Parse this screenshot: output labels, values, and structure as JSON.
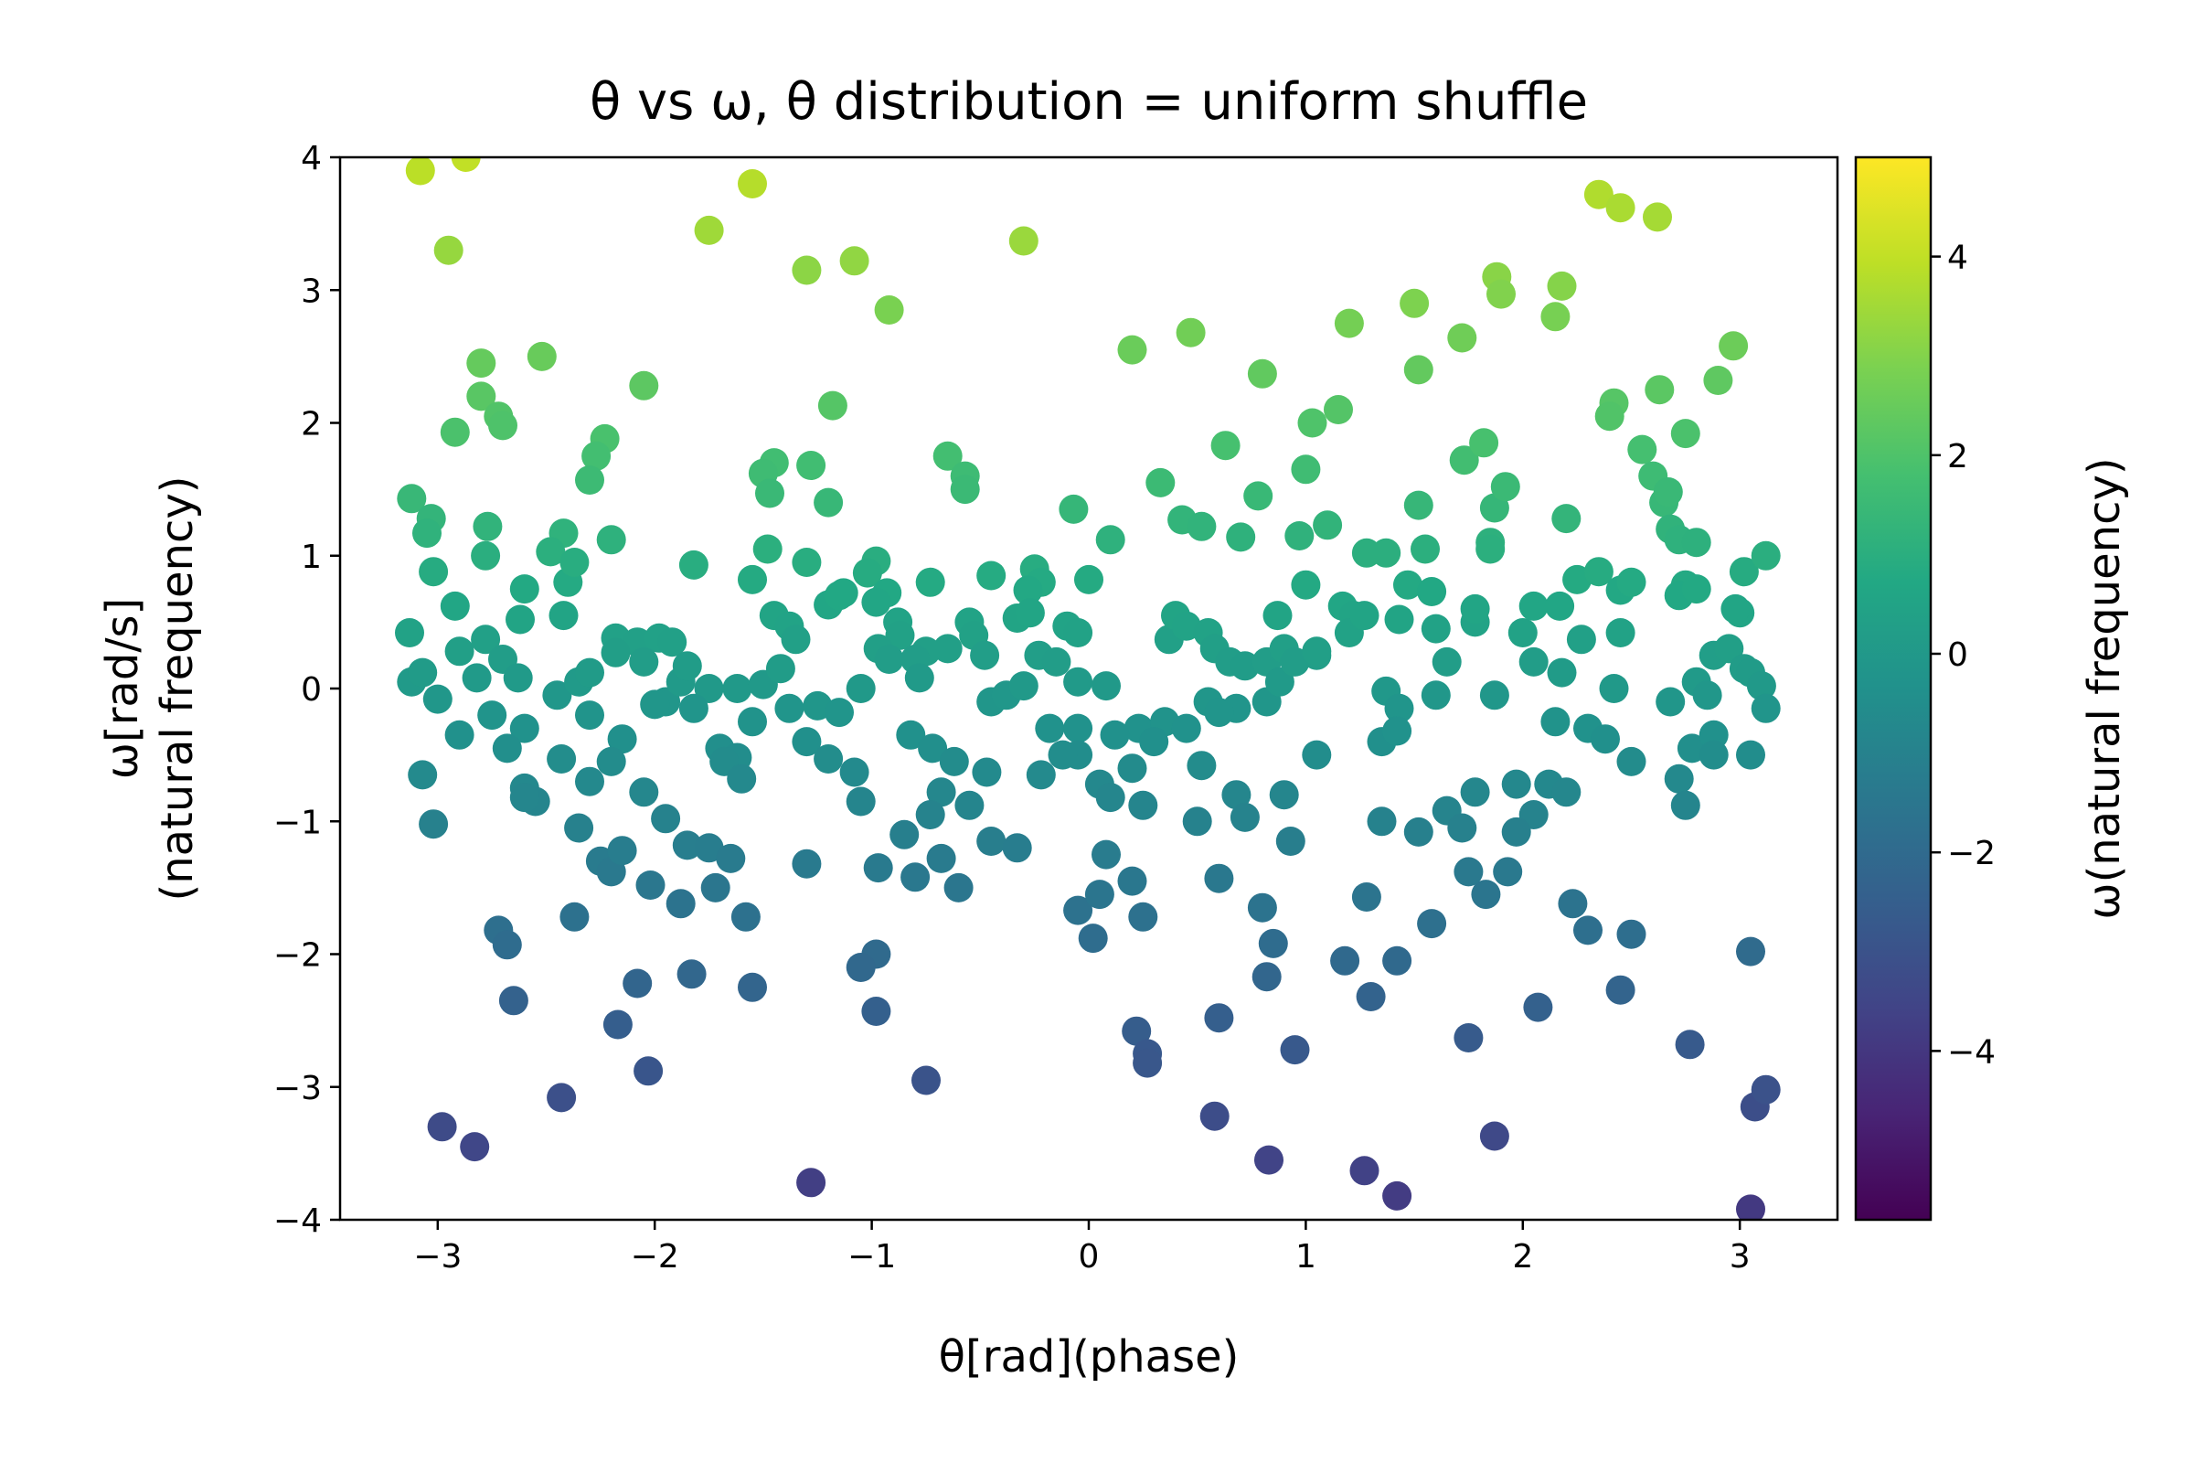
{
  "chart_data": {
    "type": "scatter",
    "title": "θ vs ω, θ distribution = uniform shuffle",
    "xlabel": "θ[rad](phase)",
    "ylabel_line1": "ω[rad/s]",
    "ylabel_line2": "(natural frequency)",
    "colorbar_label": "ω(natural frequency)",
    "colormap": "viridis",
    "xlim": [
      -3.45,
      3.45
    ],
    "ylim": [
      -4,
      4
    ],
    "clim": [
      -5.7,
      5.0
    ],
    "xticks": [
      -3,
      -2,
      -1,
      0,
      1,
      2,
      3
    ],
    "xtick_labels": [
      "−3",
      "−2",
      "−1",
      "0",
      "1",
      "2",
      "3"
    ],
    "yticks": [
      -4,
      -3,
      -2,
      -1,
      0,
      1,
      2,
      3,
      4
    ],
    "ytick_labels": [
      "−4",
      "−3",
      "−2",
      "−1",
      "0",
      "1",
      "2",
      "3",
      "4"
    ],
    "cbar_ticks": [
      -4,
      -2,
      0,
      2,
      4
    ],
    "cbar_tick_labels": [
      "−4",
      "−2",
      "0",
      "2",
      "4"
    ],
    "grid": false,
    "points": [
      [
        -3.08,
        3.9
      ],
      [
        -2.87,
        4.0
      ],
      [
        -2.95,
        3.3
      ],
      [
        -1.75,
        3.45
      ],
      [
        -1.55,
        3.8
      ],
      [
        -1.3,
        3.15
      ],
      [
        -1.08,
        3.22
      ],
      [
        -0.92,
        2.85
      ],
      [
        -0.3,
        3.37
      ],
      [
        2.35,
        3.72
      ],
      [
        2.45,
        3.62
      ],
      [
        2.62,
        3.55
      ],
      [
        1.88,
        3.1
      ],
      [
        1.9,
        2.97
      ],
      [
        2.18,
        3.03
      ],
      [
        2.15,
        2.8
      ],
      [
        1.5,
        2.9
      ],
      [
        1.2,
        2.75
      ],
      [
        0.47,
        2.68
      ],
      [
        0.2,
        2.55
      ],
      [
        0.8,
        2.37
      ],
      [
        1.72,
        2.64
      ],
      [
        1.52,
        2.4
      ],
      [
        2.97,
        2.58
      ],
      [
        2.9,
        2.32
      ],
      [
        2.42,
        2.15
      ],
      [
        2.4,
        2.05
      ],
      [
        2.63,
        2.25
      ],
      [
        2.75,
        1.92
      ],
      [
        1.03,
        2.0
      ],
      [
        1.15,
        2.1
      ],
      [
        0.63,
        1.83
      ],
      [
        -2.8,
        2.45
      ],
      [
        -2.8,
        2.2
      ],
      [
        -2.52,
        2.5
      ],
      [
        -2.05,
        2.28
      ],
      [
        -2.72,
        2.05
      ],
      [
        -2.7,
        1.98
      ],
      [
        -2.92,
        1.93
      ],
      [
        -1.18,
        2.13
      ],
      [
        -2.23,
        1.88
      ],
      [
        -2.27,
        1.75
      ],
      [
        -2.3,
        1.57
      ],
      [
        -1.45,
        1.7
      ],
      [
        -1.5,
        1.62
      ],
      [
        -1.28,
        1.68
      ],
      [
        -0.65,
        1.75
      ],
      [
        -0.57,
        1.6
      ],
      [
        -0.57,
        1.5
      ],
      [
        -1.47,
        1.47
      ],
      [
        -1.2,
        1.4
      ],
      [
        -3.12,
        1.43
      ],
      [
        -3.03,
        1.28
      ],
      [
        -3.05,
        1.17
      ],
      [
        -2.77,
        1.22
      ],
      [
        -2.42,
        1.17
      ],
      [
        -2.48,
        1.03
      ],
      [
        -2.78,
        1.0
      ],
      [
        -2.2,
        1.12
      ],
      [
        -1.48,
        1.05
      ],
      [
        -3.02,
        0.88
      ],
      [
        -2.6,
        0.75
      ],
      [
        -2.4,
        0.8
      ],
      [
        -2.37,
        0.95
      ],
      [
        -1.82,
        0.93
      ],
      [
        -1.55,
        0.82
      ],
      [
        -1.3,
        0.95
      ],
      [
        -0.98,
        0.96
      ],
      [
        -1.02,
        0.87
      ],
      [
        -0.73,
        0.8
      ],
      [
        -0.45,
        0.85
      ],
      [
        -0.25,
        0.9
      ],
      [
        -0.22,
        0.8
      ],
      [
        -0.28,
        0.74
      ],
      [
        0.0,
        0.82
      ],
      [
        -0.07,
        1.35
      ],
      [
        0.1,
        1.12
      ],
      [
        0.33,
        1.55
      ],
      [
        0.43,
        1.27
      ],
      [
        0.52,
        1.22
      ],
      [
        0.7,
        1.14
      ],
      [
        0.78,
        1.45
      ],
      [
        1.0,
        1.65
      ],
      [
        0.97,
        1.15
      ],
      [
        1.1,
        1.23
      ],
      [
        1.28,
        1.02
      ],
      [
        1.37,
        1.02
      ],
      [
        1.52,
        1.38
      ],
      [
        1.55,
        1.05
      ],
      [
        1.47,
        0.78
      ],
      [
        1.58,
        0.73
      ],
      [
        1.73,
        1.72
      ],
      [
        1.82,
        1.85
      ],
      [
        1.87,
        1.36
      ],
      [
        1.92,
        1.52
      ],
      [
        1.85,
        1.1
      ],
      [
        1.85,
        1.05
      ],
      [
        2.25,
        0.82
      ],
      [
        2.35,
        0.88
      ],
      [
        2.2,
        1.28
      ],
      [
        2.45,
        0.74
      ],
      [
        2.55,
        1.8
      ],
      [
        2.6,
        1.6
      ],
      [
        2.65,
        1.4
      ],
      [
        2.67,
        1.48
      ],
      [
        2.68,
        1.2
      ],
      [
        2.72,
        1.12
      ],
      [
        2.8,
        1.1
      ],
      [
        2.75,
        0.78
      ],
      [
        2.72,
        0.7
      ],
      [
        2.8,
        0.75
      ],
      [
        3.02,
        0.88
      ],
      [
        3.12,
        1.0
      ],
      [
        3.0,
        0.57
      ],
      [
        1.0,
        0.78
      ],
      [
        0.87,
        0.55
      ],
      [
        1.17,
        0.62
      ],
      [
        1.22,
        0.55
      ],
      [
        -0.93,
        0.72
      ],
      [
        -0.98,
        0.65
      ],
      [
        -1.2,
        0.63
      ],
      [
        -1.15,
        0.7
      ],
      [
        -1.13,
        0.72
      ],
      [
        -3.13,
        0.42
      ],
      [
        -2.92,
        0.62
      ],
      [
        -2.62,
        0.52
      ],
      [
        -2.42,
        0.55
      ],
      [
        -2.18,
        0.38
      ],
      [
        -2.08,
        0.35
      ],
      [
        -1.98,
        0.38
      ],
      [
        -1.92,
        0.35
      ],
      [
        -1.45,
        0.55
      ],
      [
        -1.38,
        0.47
      ],
      [
        -1.35,
        0.37
      ],
      [
        -0.88,
        0.5
      ],
      [
        -0.87,
        0.4
      ],
      [
        -0.75,
        0.28
      ],
      [
        -0.55,
        0.5
      ],
      [
        -0.53,
        0.4
      ],
      [
        -0.33,
        0.53
      ],
      [
        -0.27,
        0.57
      ],
      [
        -0.1,
        0.47
      ],
      [
        -0.05,
        0.42
      ],
      [
        0.37,
        0.37
      ],
      [
        0.4,
        0.55
      ],
      [
        0.45,
        0.47
      ],
      [
        0.55,
        0.42
      ],
      [
        0.58,
        0.3
      ],
      [
        0.65,
        0.2
      ],
      [
        0.72,
        0.17
      ],
      [
        0.82,
        0.2
      ],
      [
        0.9,
        0.3
      ],
      [
        1.05,
        0.25
      ],
      [
        1.2,
        0.42
      ],
      [
        1.27,
        0.55
      ],
      [
        1.43,
        0.52
      ],
      [
        1.6,
        0.45
      ],
      [
        1.65,
        0.2
      ],
      [
        1.78,
        0.5
      ],
      [
        1.78,
        0.6
      ],
      [
        2.0,
        0.42
      ],
      [
        2.05,
        0.62
      ],
      [
        2.17,
        0.62
      ],
      [
        2.27,
        0.37
      ],
      [
        2.45,
        0.42
      ],
      [
        2.5,
        0.8
      ],
      [
        2.88,
        0.25
      ],
      [
        2.95,
        0.3
      ],
      [
        2.98,
        0.6
      ],
      [
        3.02,
        0.15
      ],
      [
        -3.12,
        0.05
      ],
      [
        -3.07,
        0.12
      ],
      [
        -2.9,
        0.28
      ],
      [
        -2.82,
        0.08
      ],
      [
        -2.78,
        0.37
      ],
      [
        -2.7,
        0.22
      ],
      [
        -2.63,
        0.08
      ],
      [
        -2.45,
        -0.05
      ],
      [
        -2.35,
        0.05
      ],
      [
        -2.3,
        0.12
      ],
      [
        -2.18,
        0.27
      ],
      [
        -2.05,
        0.2
      ],
      [
        -1.95,
        -0.1
      ],
      [
        -1.88,
        0.05
      ],
      [
        -1.85,
        0.17
      ],
      [
        -1.75,
        0.0
      ],
      [
        -1.62,
        0.0
      ],
      [
        -1.5,
        0.03
      ],
      [
        -1.42,
        0.15
      ],
      [
        -1.38,
        -0.15
      ],
      [
        -1.25,
        -0.13
      ],
      [
        -1.15,
        -0.18
      ],
      [
        -1.05,
        0.0
      ],
      [
        -0.97,
        0.3
      ],
      [
        -0.92,
        0.22
      ],
      [
        -0.8,
        0.22
      ],
      [
        -0.78,
        0.08
      ],
      [
        -0.65,
        0.3
      ],
      [
        -0.48,
        0.25
      ],
      [
        -0.45,
        -0.1
      ],
      [
        -0.38,
        -0.05
      ],
      [
        -0.3,
        0.02
      ],
      [
        -0.23,
        0.25
      ],
      [
        -0.15,
        0.2
      ],
      [
        -0.05,
        0.05
      ],
      [
        0.08,
        0.02
      ],
      [
        0.23,
        -0.3
      ],
      [
        0.35,
        -0.25
      ],
      [
        0.45,
        -0.3
      ],
      [
        0.55,
        -0.1
      ],
      [
        0.68,
        -0.15
      ],
      [
        0.82,
        -0.1
      ],
      [
        0.88,
        0.05
      ],
      [
        0.95,
        0.2
      ],
      [
        1.05,
        0.28
      ],
      [
        1.37,
        -0.02
      ],
      [
        1.43,
        -0.15
      ],
      [
        1.6,
        -0.05
      ],
      [
        1.87,
        -0.05
      ],
      [
        2.05,
        0.2
      ],
      [
        2.18,
        0.12
      ],
      [
        2.42,
        0.0
      ],
      [
        2.68,
        -0.1
      ],
      [
        2.8,
        0.05
      ],
      [
        2.85,
        -0.05
      ],
      [
        3.05,
        0.12
      ],
      [
        3.1,
        0.02
      ],
      [
        3.12,
        -0.15
      ],
      [
        -3.0,
        -0.08
      ],
      [
        -2.6,
        -0.3
      ],
      [
        -2.3,
        -0.2
      ],
      [
        -2.15,
        -0.38
      ],
      [
        -2.0,
        -0.12
      ],
      [
        -1.82,
        -0.15
      ],
      [
        -1.7,
        -0.45
      ],
      [
        -1.62,
        -0.52
      ],
      [
        -1.55,
        -0.25
      ],
      [
        -1.3,
        -0.4
      ],
      [
        -1.2,
        -0.53
      ],
      [
        -0.82,
        -0.35
      ],
      [
        -0.72,
        -0.45
      ],
      [
        -0.62,
        -0.55
      ],
      [
        -0.47,
        -0.63
      ],
      [
        -0.18,
        -0.3
      ],
      [
        -0.05,
        -0.3
      ],
      [
        -0.05,
        -0.5
      ],
      [
        0.12,
        -0.35
      ],
      [
        0.2,
        -0.6
      ],
      [
        0.3,
        -0.4
      ],
      [
        0.52,
        -0.58
      ],
      [
        0.6,
        -0.18
      ],
      [
        1.05,
        -0.5
      ],
      [
        1.35,
        -0.4
      ],
      [
        1.42,
        -0.32
      ],
      [
        2.15,
        -0.25
      ],
      [
        2.3,
        -0.3
      ],
      [
        2.38,
        -0.38
      ],
      [
        2.5,
        -0.55
      ],
      [
        2.78,
        -0.45
      ],
      [
        2.88,
        -0.35
      ],
      [
        3.05,
        -0.5
      ],
      [
        -3.07,
        -0.65
      ],
      [
        -2.9,
        -0.35
      ],
      [
        -2.75,
        -0.2
      ],
      [
        -2.68,
        -0.45
      ],
      [
        -2.6,
        -0.75
      ],
      [
        -2.55,
        -0.85
      ],
      [
        -2.43,
        -0.53
      ],
      [
        -2.3,
        -0.7
      ],
      [
        -2.2,
        -0.55
      ],
      [
        -2.05,
        -0.78
      ],
      [
        -1.68,
        -0.55
      ],
      [
        -1.6,
        -0.68
      ],
      [
        -1.08,
        -0.63
      ],
      [
        -0.68,
        -0.78
      ],
      [
        -0.73,
        -0.95
      ],
      [
        -0.55,
        -0.88
      ],
      [
        -0.22,
        -0.65
      ],
      [
        -0.12,
        -0.5
      ],
      [
        0.05,
        -0.72
      ],
      [
        0.1,
        -0.82
      ],
      [
        0.25,
        -0.88
      ],
      [
        0.5,
        -1.0
      ],
      [
        0.68,
        -0.8
      ],
      [
        0.72,
        -0.97
      ],
      [
        0.9,
        -0.8
      ],
      [
        1.35,
        -1.0
      ],
      [
        1.65,
        -0.92
      ],
      [
        1.72,
        -1.05
      ],
      [
        1.78,
        -0.78
      ],
      [
        1.97,
        -0.72
      ],
      [
        2.05,
        -0.95
      ],
      [
        2.12,
        -0.72
      ],
      [
        2.2,
        -0.78
      ],
      [
        2.72,
        -0.68
      ],
      [
        2.75,
        -0.88
      ],
      [
        2.88,
        -0.5
      ],
      [
        -3.02,
        -1.02
      ],
      [
        -2.6,
        -0.82
      ],
      [
        -2.35,
        -1.05
      ],
      [
        -2.25,
        -1.3
      ],
      [
        -2.2,
        -1.38
      ],
      [
        -2.15,
        -1.22
      ],
      [
        -2.02,
        -1.48
      ],
      [
        -1.95,
        -0.98
      ],
      [
        -1.88,
        -1.62
      ],
      [
        -1.85,
        -1.18
      ],
      [
        -1.75,
        -1.2
      ],
      [
        -1.72,
        -1.5
      ],
      [
        -1.65,
        -1.28
      ],
      [
        -1.58,
        -1.72
      ],
      [
        -1.05,
        -0.85
      ],
      [
        -0.97,
        -1.35
      ],
      [
        -0.85,
        -1.1
      ],
      [
        -0.8,
        -1.42
      ],
      [
        -0.68,
        -1.28
      ],
      [
        -0.6,
        -1.5
      ],
      [
        -0.45,
        -1.15
      ],
      [
        -0.33,
        -1.2
      ],
      [
        -0.05,
        -1.67
      ],
      [
        0.05,
        -1.55
      ],
      [
        0.08,
        -1.25
      ],
      [
        0.2,
        -1.45
      ],
      [
        0.25,
        -1.72
      ],
      [
        0.6,
        -1.43
      ],
      [
        0.8,
        -1.65
      ],
      [
        0.93,
        -1.15
      ],
      [
        1.28,
        -1.57
      ],
      [
        1.52,
        -1.08
      ],
      [
        1.75,
        -1.38
      ],
      [
        1.83,
        -1.55
      ],
      [
        1.93,
        -1.38
      ],
      [
        1.97,
        -1.08
      ],
      [
        -2.37,
        -1.72
      ],
      [
        -1.3,
        -1.32
      ],
      [
        2.23,
        -1.62
      ],
      [
        2.3,
        -1.82
      ],
      [
        2.5,
        -1.85
      ],
      [
        3.05,
        -1.98
      ],
      [
        1.58,
        -1.77
      ],
      [
        1.42,
        -2.05
      ],
      [
        1.3,
        -2.32
      ],
      [
        1.18,
        -2.05
      ],
      [
        0.82,
        -2.17
      ],
      [
        0.85,
        -1.92
      ],
      [
        0.02,
        -1.88
      ],
      [
        -0.98,
        -2.0
      ],
      [
        -1.05,
        -2.1
      ],
      [
        -1.55,
        -2.25
      ],
      [
        -1.83,
        -2.15
      ],
      [
        -2.08,
        -2.22
      ],
      [
        -2.72,
        -1.82
      ],
      [
        -2.68,
        -1.93
      ],
      [
        -2.65,
        -2.35
      ],
      [
        -2.17,
        -2.53
      ],
      [
        -2.03,
        -2.88
      ],
      [
        -0.98,
        -2.43
      ],
      [
        0.22,
        -2.58
      ],
      [
        0.27,
        -2.75
      ],
      [
        0.27,
        -2.82
      ],
      [
        0.6,
        -2.48
      ],
      [
        0.95,
        -2.72
      ],
      [
        1.75,
        -2.63
      ],
      [
        2.07,
        -2.4
      ],
      [
        2.45,
        -2.27
      ],
      [
        2.77,
        -2.68
      ],
      [
        -0.75,
        -2.95
      ],
      [
        -2.98,
        -3.3
      ],
      [
        -2.83,
        -3.45
      ],
      [
        -2.43,
        -3.08
      ],
      [
        -1.28,
        -3.72
      ],
      [
        0.58,
        -3.22
      ],
      [
        0.83,
        -3.55
      ],
      [
        1.27,
        -3.63
      ],
      [
        1.42,
        -3.82
      ],
      [
        1.87,
        -3.37
      ],
      [
        3.07,
        -3.15
      ],
      [
        3.12,
        -3.02
      ],
      [
        3.05,
        -3.92
      ]
    ]
  }
}
